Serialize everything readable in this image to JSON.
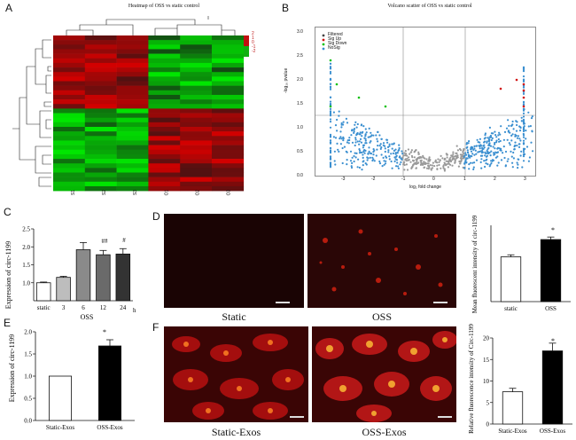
{
  "panels": {
    "A": {
      "letter": "A",
      "title": "Heatmap of OSS vs static control",
      "columns": [
        "S1",
        "S2",
        "S3",
        "O1",
        "O2",
        "O3"
      ],
      "legend_ticks": [
        "2",
        "1",
        "0",
        "-1",
        "-2"
      ]
    },
    "B": {
      "letter": "B",
      "title": "Volcano scatter of OSS vs static control",
      "xlabel": "log₂ fold change",
      "ylabel": "-log₁₀ pvalue",
      "legend": [
        "Filtered",
        "Sig Up",
        "Sig Down",
        "NoSig"
      ],
      "xticks": [
        "-3",
        "-2",
        "-1",
        "0",
        "1",
        "2",
        "3"
      ],
      "yticks": [
        "0.0",
        "0.5",
        "1.0",
        "1.5",
        "2.0",
        "2.5",
        "3.0"
      ]
    },
    "C": {
      "letter": "C",
      "ylabel": "Expression of circ-1199",
      "group_label": "OSS",
      "unit": "h",
      "yticks": [
        "1.0",
        "1.5",
        "2.0",
        "2.5"
      ],
      "annotations": [
        "##",
        "#"
      ]
    },
    "D": {
      "letter": "D",
      "captions": [
        "Static",
        "OSS"
      ],
      "ylabel": "Mean fluorescent intensity of circ-1199",
      "star": "*"
    },
    "E": {
      "letter": "E",
      "ylabel": "Expression of circ-1199",
      "yticks": [
        "0.0",
        "0.5",
        "1.0",
        "1.5",
        "2.0"
      ],
      "star": "*"
    },
    "F": {
      "letter": "F",
      "captions": [
        "Static-Exos",
        "OSS-Exos"
      ],
      "ylabel": "Relative fluorescence intensity of Circ-1199",
      "yticks": [
        "0",
        "5",
        "10",
        "15",
        "20"
      ],
      "star": "*"
    }
  },
  "colors": {
    "red": "#b01010",
    "green": "#10c010",
    "blue": "#3a8fd0",
    "gray_bar": "#8a8a8a",
    "dark_bar": "#333333"
  },
  "chart_data": [
    {
      "type": "bar",
      "panel": "C",
      "categories": [
        "static",
        "3",
        "6",
        "12",
        "24"
      ],
      "values": [
        1.0,
        1.15,
        1.92,
        1.78,
        1.8
      ],
      "errors": [
        0.02,
        0.03,
        0.2,
        0.12,
        0.15
      ],
      "ylabel": "Expression of circ-1199",
      "ylim": [
        0.5,
        2.5
      ]
    },
    {
      "type": "bar",
      "panel": "D",
      "categories": [
        "static",
        "OSS"
      ],
      "values": [
        0.88,
        1.22
      ],
      "errors": [
        0.04,
        0.05
      ],
      "ylabel": "Mean fluorescent intensity of circ-1199",
      "ylim": [
        0.0,
        1.5
      ]
    },
    {
      "type": "bar",
      "panel": "E",
      "categories": [
        "Static-Exos",
        "OSS-Exos"
      ],
      "values": [
        1.0,
        1.68
      ],
      "errors": [
        0.0,
        0.14
      ],
      "ylabel": "Expression of circ-1199",
      "ylim": [
        0.0,
        2.0
      ]
    },
    {
      "type": "bar",
      "panel": "F",
      "categories": [
        "Static-Exos",
        "OSS-Exos"
      ],
      "values": [
        7.5,
        17.0
      ],
      "errors": [
        0.8,
        1.8
      ],
      "ylabel": "Relative fluorescence intensity of Circ-1199",
      "ylim": [
        0,
        20
      ]
    }
  ]
}
